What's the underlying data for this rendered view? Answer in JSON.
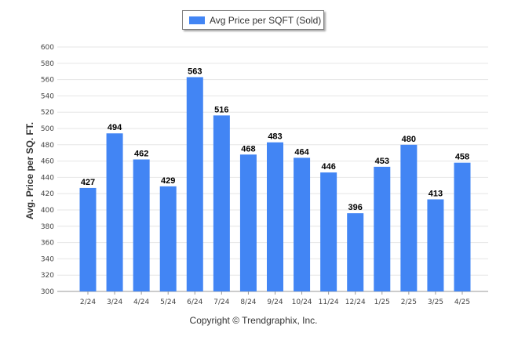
{
  "chart_data": {
    "type": "bar",
    "title": "",
    "xlabel": "",
    "ylabel": "Avg. Price per SQ. FT.",
    "ylim": [
      300,
      600
    ],
    "ytick_step": 20,
    "grid": true,
    "legend_position": "top-center",
    "categories": [
      "2/24",
      "3/24",
      "4/24",
      "5/24",
      "6/24",
      "7/24",
      "8/24",
      "9/24",
      "10/24",
      "11/24",
      "12/24",
      "1/25",
      "2/25",
      "3/25",
      "4/25"
    ],
    "series": [
      {
        "name": "Avg Price per SQFT (Sold)",
        "color": "#4285f4",
        "values": [
          427,
          494,
          462,
          429,
          563,
          516,
          468,
          483,
          464,
          446,
          396,
          453,
          480,
          413,
          458
        ]
      }
    ]
  },
  "footer": {
    "copyright": "Copyright © Trendgraphix, Inc."
  }
}
